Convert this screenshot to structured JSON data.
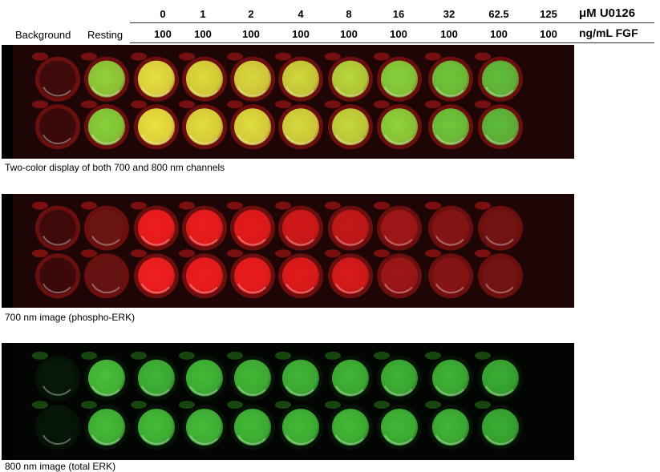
{
  "header": {
    "concentrations": [
      "0",
      "1",
      "2",
      "4",
      "8",
      "16",
      "32",
      "62.5",
      "125"
    ],
    "fgf_values": [
      "100",
      "100",
      "100",
      "100",
      "100",
      "100",
      "100",
      "100",
      "100"
    ],
    "concentration_unit": "μM U0126",
    "fgf_unit": "ng/mL FGF",
    "background_label": "Background",
    "resting_label": "Resting"
  },
  "panels": [
    {
      "caption": "Two-color display of both 700 and 800 nm channels",
      "bg": "#1e0606",
      "ring": "#6a0e0e",
      "splash": "#c01818",
      "wells_top": [
        "#3a0a0a",
        "#8fd23a",
        "#e6e040",
        "#dcdc3a",
        "#d8d83c",
        "#cfd83a",
        "#b6d83a",
        "#86d23a",
        "#6cc83a",
        "#5ec03a"
      ],
      "wells_bottom": [
        "#360909",
        "#86d23a",
        "#eae43e",
        "#e2de3c",
        "#dede3c",
        "#d6da3c",
        "#c4da3a",
        "#8cd43a",
        "#6cc83a",
        "#5cbd3a"
      ]
    },
    {
      "caption": "700 nm image (phospho-ERK)",
      "bg": "#1e0606",
      "ring": "#6a0e0e",
      "splash": "#c81818",
      "wells_top": [
        "#3c0a0a",
        "#6a1414",
        "#f21c1c",
        "#ee1c1c",
        "#e61a1a",
        "#d21818",
        "#c41818",
        "#a01616",
        "#861414",
        "#741212"
      ],
      "wells_bottom": [
        "#380909",
        "#641212",
        "#f41e1e",
        "#f01c1c",
        "#ec1c1c",
        "#e21a1a",
        "#d81a1a",
        "#9c1616",
        "#861414",
        "#741212"
      ]
    },
    {
      "caption": "800 nm image (total ERK)",
      "bg": "#020502",
      "ring": "#061206",
      "splash": "#2a7a1a",
      "wells_top": [
        "#061806",
        "#48c03a",
        "#40b636",
        "#42ba36",
        "#42b836",
        "#40b636",
        "#40b636",
        "#3eb434",
        "#3eb434",
        "#3aae32"
      ],
      "wells_bottom": [
        "#061606",
        "#44bc38",
        "#44bc38",
        "#44bc38",
        "#42ba36",
        "#42ba36",
        "#42ba36",
        "#40b836",
        "#40b636",
        "#3aae32"
      ]
    }
  ]
}
